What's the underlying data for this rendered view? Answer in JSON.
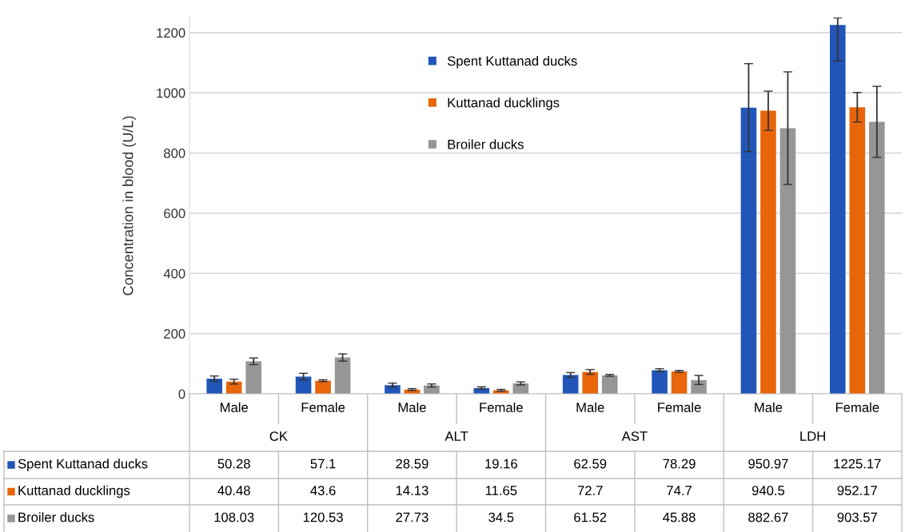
{
  "chart_data": {
    "type": "bar",
    "ylabel": "Concentration in blood (U/L)",
    "categories": [
      "Male",
      "Female",
      "Male",
      "Female",
      "Male",
      "Female",
      "Male",
      "Female"
    ],
    "annotations": [
      "CK",
      "ALT",
      "AST",
      "LDH"
    ],
    "series": [
      {
        "name": "Spent Kuttanad ducks",
        "color": "#2155b8",
        "values": [
          50.28,
          57.1,
          28.59,
          19.16,
          62.59,
          78.29,
          950.97,
          1225.17
        ],
        "errors": [
          9,
          11,
          7,
          4,
          8,
          5,
          146,
          [
            1106,
            1249
          ]
        ]
      },
      {
        "name": "Kuttanad ducklings",
        "color": "#e8650a",
        "values": [
          40.48,
          43.6,
          14.13,
          11.65,
          72.7,
          74.7,
          940.5,
          952.17
        ],
        "errors": [
          8,
          3,
          3,
          3,
          8,
          3,
          65,
          49
        ]
      },
      {
        "name": "Broiler ducks",
        "color": "#969696",
        "values": [
          108.03,
          120.53,
          27.73,
          34.5,
          61.52,
          45.88,
          882.67,
          903.57
        ],
        "errors": [
          11,
          12,
          5,
          5,
          3,
          15,
          187,
          118
        ]
      }
    ],
    "ylim": [
      0,
      1250
    ],
    "yticks": [
      0,
      200,
      400,
      600,
      800,
      1000,
      1200
    ],
    "grid": "y",
    "legend": "top",
    "data_labels": true
  }
}
